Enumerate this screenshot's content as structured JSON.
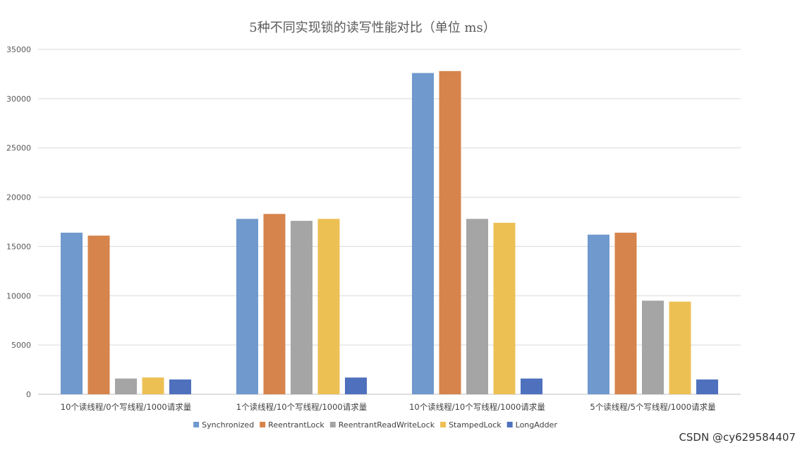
{
  "chart_data": {
    "type": "bar",
    "title": "5种不同实现锁的读写性能对比（单位 ms）",
    "xlabel": "",
    "ylabel": "",
    "ylim": [
      0,
      35000
    ],
    "yticks": [
      0,
      5000,
      10000,
      15000,
      20000,
      25000,
      30000,
      35000
    ],
    "grid": true,
    "legend_position": "bottom",
    "categories": [
      "10个读线程/0个写线程/1000请求量",
      "1个读线程/10个写线程/1000请求量",
      "10个读线程/10个写线程/1000请求量",
      "5个读线程/5个写线程/1000请求量"
    ],
    "series": [
      {
        "name": "Synchronized",
        "color": "#7099cd",
        "values": [
          16400,
          17800,
          32600,
          16200
        ]
      },
      {
        "name": "ReentrantLock",
        "color": "#d6844b",
        "values": [
          16100,
          18300,
          32800,
          16400
        ]
      },
      {
        "name": "ReentrantReadWriteLock",
        "color": "#a5a5a5",
        "values": [
          1600,
          17600,
          17800,
          9500
        ]
      },
      {
        "name": "StampedLock",
        "color": "#edc054",
        "values": [
          1700,
          17800,
          17400,
          9400
        ]
      },
      {
        "name": "LongAdder",
        "color": "#4e70bd",
        "values": [
          1500,
          1700,
          1600,
          1500
        ]
      }
    ]
  },
  "watermark": "CSDN @cy629584407"
}
